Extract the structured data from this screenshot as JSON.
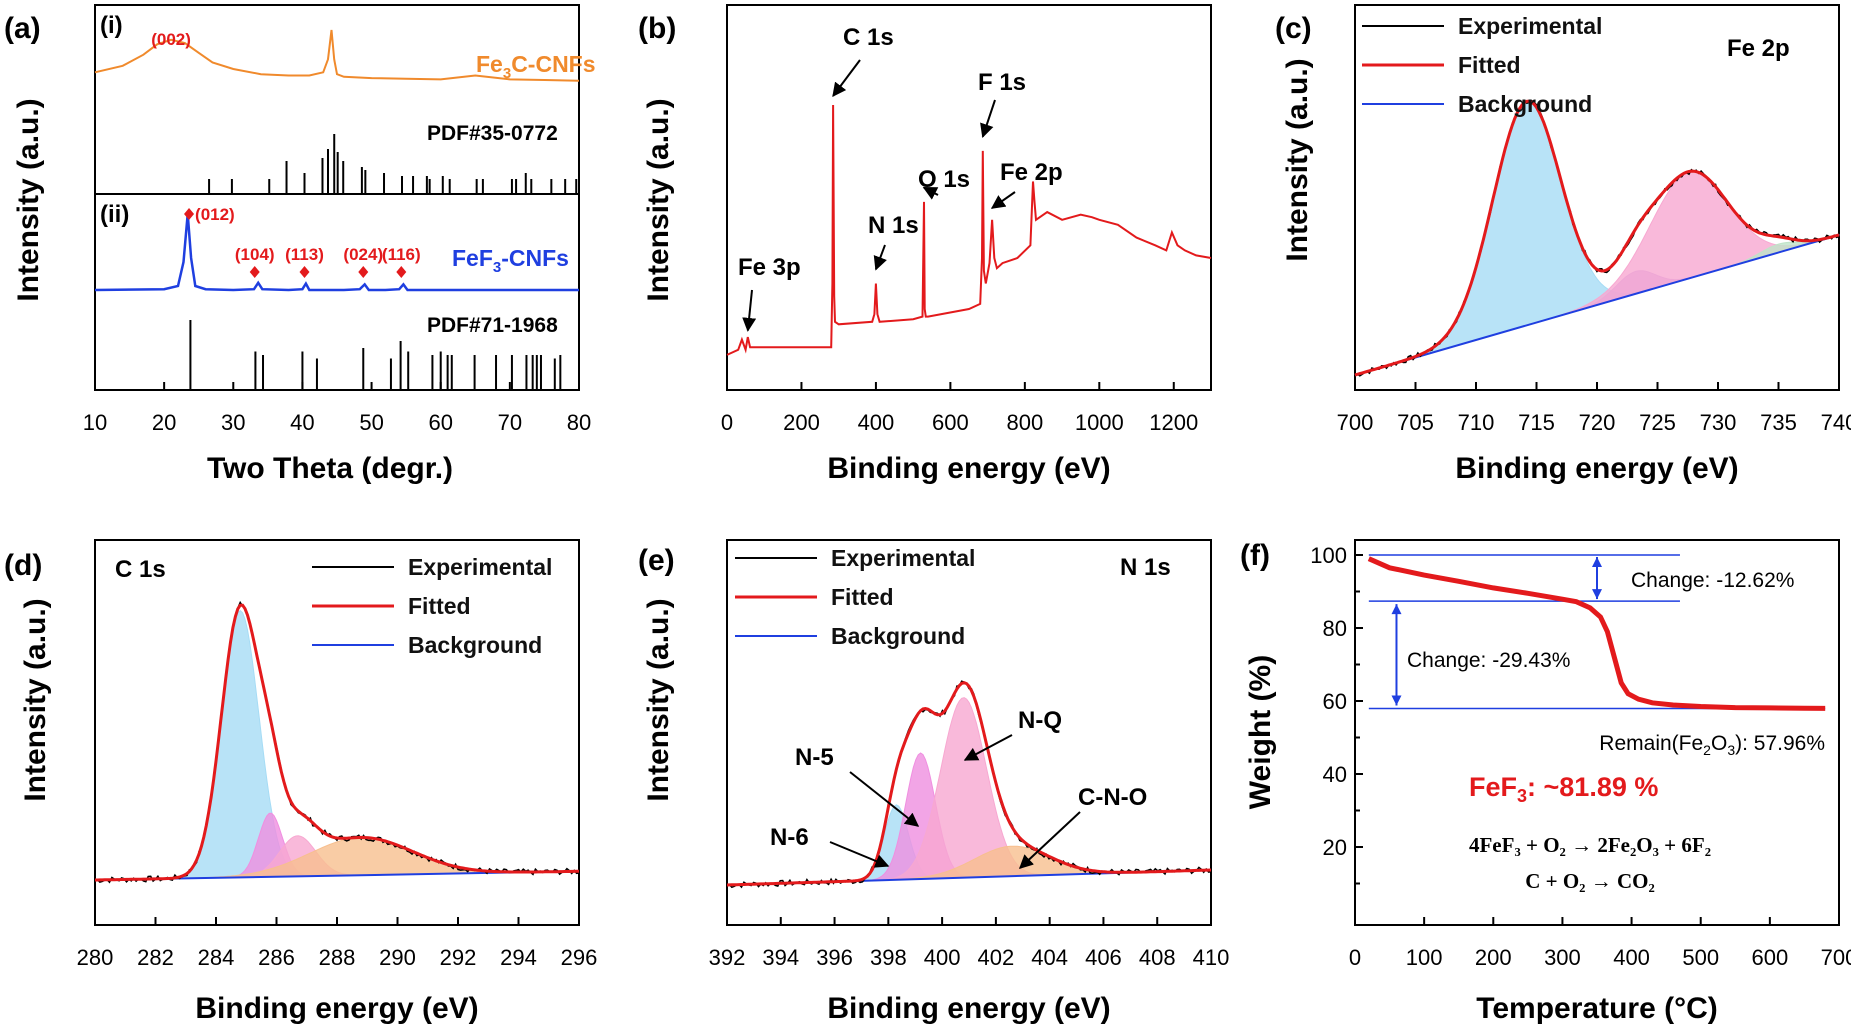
{
  "chart_data": [
    {
      "panel": "(a)",
      "type": "line",
      "xlabel": "Two Theta (degr.)",
      "ylabel": "Intensity (a.u.)",
      "xlim": [
        10,
        80
      ],
      "xticks": [
        10,
        20,
        30,
        40,
        50,
        60,
        70,
        80
      ],
      "sub_labels": [
        "(i)",
        "(ii)"
      ],
      "series": [
        {
          "name": "Fe3C-CNFs",
          "color": "#f08a2c",
          "x": [
            10,
            14,
            17,
            19,
            21,
            23,
            25,
            27,
            30,
            34,
            38,
            41,
            43,
            43.7,
            44.2,
            44.6,
            45,
            46,
            50,
            55,
            60,
            65,
            70,
            75,
            80
          ],
          "y": [
            0.35,
            0.45,
            0.62,
            0.78,
            0.85,
            0.8,
            0.65,
            0.5,
            0.4,
            0.32,
            0.3,
            0.3,
            0.35,
            0.55,
            1.0,
            0.55,
            0.32,
            0.28,
            0.26,
            0.25,
            0.24,
            0.3,
            0.24,
            0.23,
            0.22
          ]
        },
        {
          "name": "FeF3-CNFs",
          "color": "#1f3fe0",
          "x": [
            10,
            20,
            22,
            22.8,
            23.4,
            23.9,
            24.5,
            26,
            30,
            33,
            33.6,
            34.2,
            38,
            40,
            40.5,
            41,
            46,
            48.3,
            49,
            49.6,
            52,
            54,
            54.6,
            55.2,
            60,
            70,
            80
          ],
          "y": [
            0.05,
            0.06,
            0.1,
            0.4,
            1.0,
            0.45,
            0.1,
            0.06,
            0.05,
            0.06,
            0.14,
            0.06,
            0.05,
            0.06,
            0.13,
            0.05,
            0.05,
            0.06,
            0.12,
            0.05,
            0.05,
            0.06,
            0.12,
            0.05,
            0.05,
            0.05,
            0.05
          ]
        }
      ],
      "peak_labels": [
        {
          "text": "(002)",
          "x": 21
        },
        {
          "text": "(012)",
          "x": 23.6
        },
        {
          "text": "(104)",
          "x": 33.1
        },
        {
          "text": "(113)",
          "x": 40.3
        },
        {
          "text": "(024)",
          "x": 48.8
        },
        {
          "text": "(116)",
          "x": 54.3
        }
      ],
      "references": [
        {
          "name": "PDF#35-0772",
          "x": [
            26.5,
            29.8,
            35.2,
            37.7,
            40.3,
            42.9,
            43.7,
            44.6,
            45.1,
            45.9,
            48.6,
            49.1,
            51.8,
            54.4,
            56.0,
            58.0,
            58.4,
            60.3,
            61.3,
            65.2,
            66.1,
            70.3,
            70.9,
            72.3,
            73.1,
            76.0,
            78.0,
            79.6
          ],
          "h": [
            0.25,
            0.25,
            0.25,
            0.55,
            0.35,
            0.6,
            0.75,
            1.0,
            0.7,
            0.55,
            0.45,
            0.4,
            0.35,
            0.3,
            0.3,
            0.3,
            0.25,
            0.3,
            0.25,
            0.25,
            0.25,
            0.25,
            0.25,
            0.35,
            0.25,
            0.25,
            0.25,
            0.25
          ]
        },
        {
          "name": "PDF#71-1968",
          "x": [
            23.8,
            33.2,
            34.3,
            40.0,
            42.1,
            48.8,
            52.8,
            54.2,
            55.3,
            58.8,
            60.0,
            61.0,
            61.6,
            64.9,
            68.0,
            70.3,
            72.4,
            73.3,
            73.9,
            74.5,
            76.5,
            77.3
          ],
          "h": [
            1.0,
            0.55,
            0.5,
            0.55,
            0.45,
            0.6,
            0.45,
            0.7,
            0.55,
            0.5,
            0.55,
            0.5,
            0.5,
            0.5,
            0.5,
            0.5,
            0.5,
            0.5,
            0.5,
            0.5,
            0.45,
            0.5
          ]
        }
      ]
    },
    {
      "panel": "(b)",
      "type": "line",
      "xlabel": "Binding energy (eV)",
      "ylabel": "Intensity (a.u.)",
      "xlim": [
        0,
        1300
      ],
      "xticks": [
        0,
        200,
        400,
        600,
        800,
        1000,
        1200
      ],
      "color": "#e31a1c",
      "x": [
        0,
        30,
        40,
        50,
        56,
        62,
        80,
        150,
        250,
        280,
        283,
        285,
        288,
        290,
        300,
        390,
        396,
        400,
        404,
        410,
        500,
        525,
        529,
        531,
        534,
        540,
        650,
        680,
        685,
        687,
        690,
        695,
        705,
        712,
        718,
        725,
        740,
        780,
        815,
        822,
        826,
        830,
        860,
        900,
        950,
        980,
        1000,
        1050,
        1100,
        1150,
        1180,
        1195,
        1210,
        1230,
        1260,
        1300
      ],
      "y": [
        0.02,
        0.04,
        0.08,
        0.04,
        0.09,
        0.05,
        0.05,
        0.05,
        0.05,
        0.05,
        0.3,
        1.0,
        0.25,
        0.15,
        0.14,
        0.15,
        0.18,
        0.3,
        0.18,
        0.15,
        0.16,
        0.17,
        0.62,
        0.2,
        0.17,
        0.17,
        0.2,
        0.22,
        0.4,
        0.82,
        0.35,
        0.3,
        0.38,
        0.55,
        0.4,
        0.36,
        0.38,
        0.4,
        0.45,
        0.7,
        0.62,
        0.55,
        0.58,
        0.55,
        0.57,
        0.56,
        0.55,
        0.53,
        0.48,
        0.45,
        0.43,
        0.5,
        0.45,
        0.43,
        0.41,
        0.4
      ],
      "annotations": [
        "Fe 3p",
        "C 1s",
        "N 1s",
        "O 1s",
        "F 1s",
        "Fe 2p"
      ]
    },
    {
      "panel": "(c)",
      "type": "area",
      "title": "Fe 2p",
      "xlabel": "Binding energy (eV)",
      "ylabel": "Intensity (a.u.)",
      "xlim": [
        700,
        740
      ],
      "xticks": [
        700,
        705,
        710,
        715,
        720,
        725,
        730,
        735,
        740
      ],
      "legend": [
        "Experimental",
        "Fitted",
        "Background"
      ],
      "background": {
        "x": [
          700,
          740
        ],
        "y": [
          0.0,
          0.5
        ]
      },
      "components": [
        {
          "center": 714.2,
          "width": 2.8,
          "height": 0.8,
          "color": "#a6dcf5"
        },
        {
          "center": 723.2,
          "width": 1.6,
          "height": 0.08,
          "color": "#c9a3e6"
        },
        {
          "center": 727.6,
          "width": 3.2,
          "height": 0.38,
          "color": "#f7a8d1"
        },
        {
          "center": 735.0,
          "width": 1.5,
          "height": 0.03,
          "color": "#bfe3c8"
        }
      ]
    },
    {
      "panel": "(d)",
      "type": "area",
      "title": "C 1s",
      "xlabel": "Binding energy (eV)",
      "ylabel": "Intensity (a.u.)",
      "xlim": [
        280,
        296
      ],
      "xticks": [
        280,
        282,
        284,
        286,
        288,
        290,
        292,
        294,
        296
      ],
      "legend": [
        "Experimental",
        "Fitted",
        "Background"
      ],
      "background": {
        "x": [
          280,
          296
        ],
        "y": [
          0.0,
          0.03
        ]
      },
      "components": [
        {
          "center": 284.8,
          "width": 0.62,
          "height": 0.92,
          "color": "#a6dcf5"
        },
        {
          "center": 285.8,
          "width": 0.4,
          "height": 0.22,
          "color": "#ef8fe0"
        },
        {
          "center": 286.7,
          "width": 0.6,
          "height": 0.14,
          "color": "#f7a8d1"
        },
        {
          "center": 288.8,
          "width": 1.7,
          "height": 0.13,
          "color": "#f7bf8f"
        }
      ]
    },
    {
      "panel": "(e)",
      "type": "area",
      "title": "N 1s",
      "xlabel": "Binding energy (eV)",
      "ylabel": "Intensity (a.u.)",
      "xlim": [
        392,
        410
      ],
      "xticks": [
        392,
        394,
        396,
        398,
        400,
        402,
        404,
        406,
        408,
        410
      ],
      "legend": [
        "Experimental",
        "Fitted",
        "Background"
      ],
      "background": {
        "x": [
          392,
          410
        ],
        "y": [
          0.0,
          0.05
        ]
      },
      "components": [
        {
          "center": 398.3,
          "width": 0.45,
          "height": 0.25,
          "color": "#a6dcf5"
        },
        {
          "center": 399.2,
          "width": 0.55,
          "height": 0.42,
          "color": "#ef8fe0"
        },
        {
          "center": 400.8,
          "width": 0.85,
          "height": 0.6,
          "color": "#f7a8d1"
        },
        {
          "center": 402.6,
          "width": 1.4,
          "height": 0.1,
          "color": "#f7bf8f"
        }
      ],
      "annotations": [
        "N-6",
        "N-5",
        "N-Q",
        "C-N-O"
      ]
    },
    {
      "panel": "(f)",
      "type": "line",
      "xlabel": "Temperature (°C)",
      "ylabel": "Weight (%)",
      "xlim": [
        0,
        700
      ],
      "ylim": [
        0,
        100
      ],
      "xticks": [
        0,
        100,
        200,
        300,
        400,
        500,
        600,
        700
      ],
      "yticks": [
        20,
        40,
        60,
        80,
        100
      ],
      "color": "#e31a1c",
      "x": [
        20,
        50,
        100,
        150,
        200,
        250,
        300,
        320,
        340,
        355,
        365,
        375,
        385,
        395,
        410,
        430,
        460,
        500,
        550,
        600,
        650,
        680
      ],
      "y": [
        99.0,
        96.5,
        94.5,
        92.8,
        91.0,
        89.5,
        87.9,
        87.2,
        85.5,
        83.0,
        79.0,
        72.0,
        65.0,
        62.0,
        60.5,
        59.5,
        58.9,
        58.5,
        58.2,
        58.1,
        58.0,
        57.96
      ],
      "reference_lines": [
        100,
        87.38,
        57.96
      ],
      "change_1": "Change: -12.62%",
      "change_2": "Change: -29.43%",
      "remain_prefix": "Remain(Fe",
      "remain_sub": "2",
      "remain_mid": "O",
      "remain_sub2": "3",
      "remain_suffix": "): 57.96%",
      "fef3_prefix": "FeF",
      "fef3_sub": "3",
      "fef3_suffix": ": ~81.89 %",
      "equation_1": "4FeF₃ + O₂ → 2Fe₂O₃ + 6F₂",
      "equation_2": "C + O₂ → CO₂"
    }
  ],
  "labels": {
    "fe3c_prefix": "Fe",
    "fe3c_sub": "3",
    "fe3c_suffix": "C-CNFs",
    "fef3_prefix": "FeF",
    "fef3_sub": "3",
    "fef3_suffix": "-CNFs"
  },
  "colors": {
    "experimental": "#000000",
    "fitted": "#e31a1c",
    "background": "#1f3fe0",
    "annotation_red": "#e31a1c"
  }
}
